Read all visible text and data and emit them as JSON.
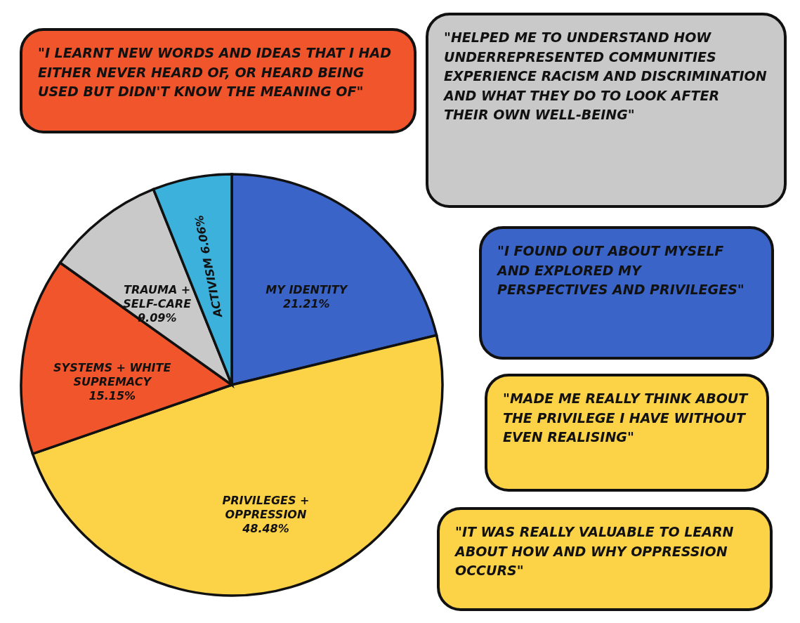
{
  "chart_data": {
    "type": "pie",
    "categories": [
      "MY IDENTITY",
      "PRIVILEGES + OPPRESSION",
      "SYSTEMS + WHITE SUPREMACY",
      "TRAUMA + SELF-CARE",
      "ACTIVISM"
    ],
    "values": [
      21.21,
      48.48,
      15.15,
      9.09,
      6.06
    ],
    "value_labels": [
      "21.21%",
      "48.48%",
      "15.15%",
      "9.09%",
      "6.06%"
    ],
    "colors": [
      "#3b64c8",
      "#fcd246",
      "#f1552b",
      "#c9c9c9",
      "#3cb1dc"
    ],
    "annotations": [
      "\"I LEARNT NEW WORDS AND IDEAS THAT I HAD EITHER NEVER HEARD OF, OR HEARD BEING USED BUT DIDN'T KNOW THE MEANING OF\"",
      "\"HELPED ME TO UNDERSTAND HOW UNDERREPRESENTED COMMUNITIES EXPERIENCE RACISM AND DISCRIMINATION AND WHAT THEY DO TO LOOK AFTER THEIR OWN WELL-BEING\"",
      "\"I FOUND OUT ABOUT MYSELF AND EXPLORED MY PERSPECTIVES AND PRIVILEGES\"",
      "\"MADE ME REALLY THINK ABOUT THE PRIVILEGE I HAVE WITHOUT EVEN REALISING\"",
      "\"IT WAS REALLY VALUABLE TO LEARN ABOUT HOW AND WHY OPPRESSION OCCURS\""
    ]
  }
}
